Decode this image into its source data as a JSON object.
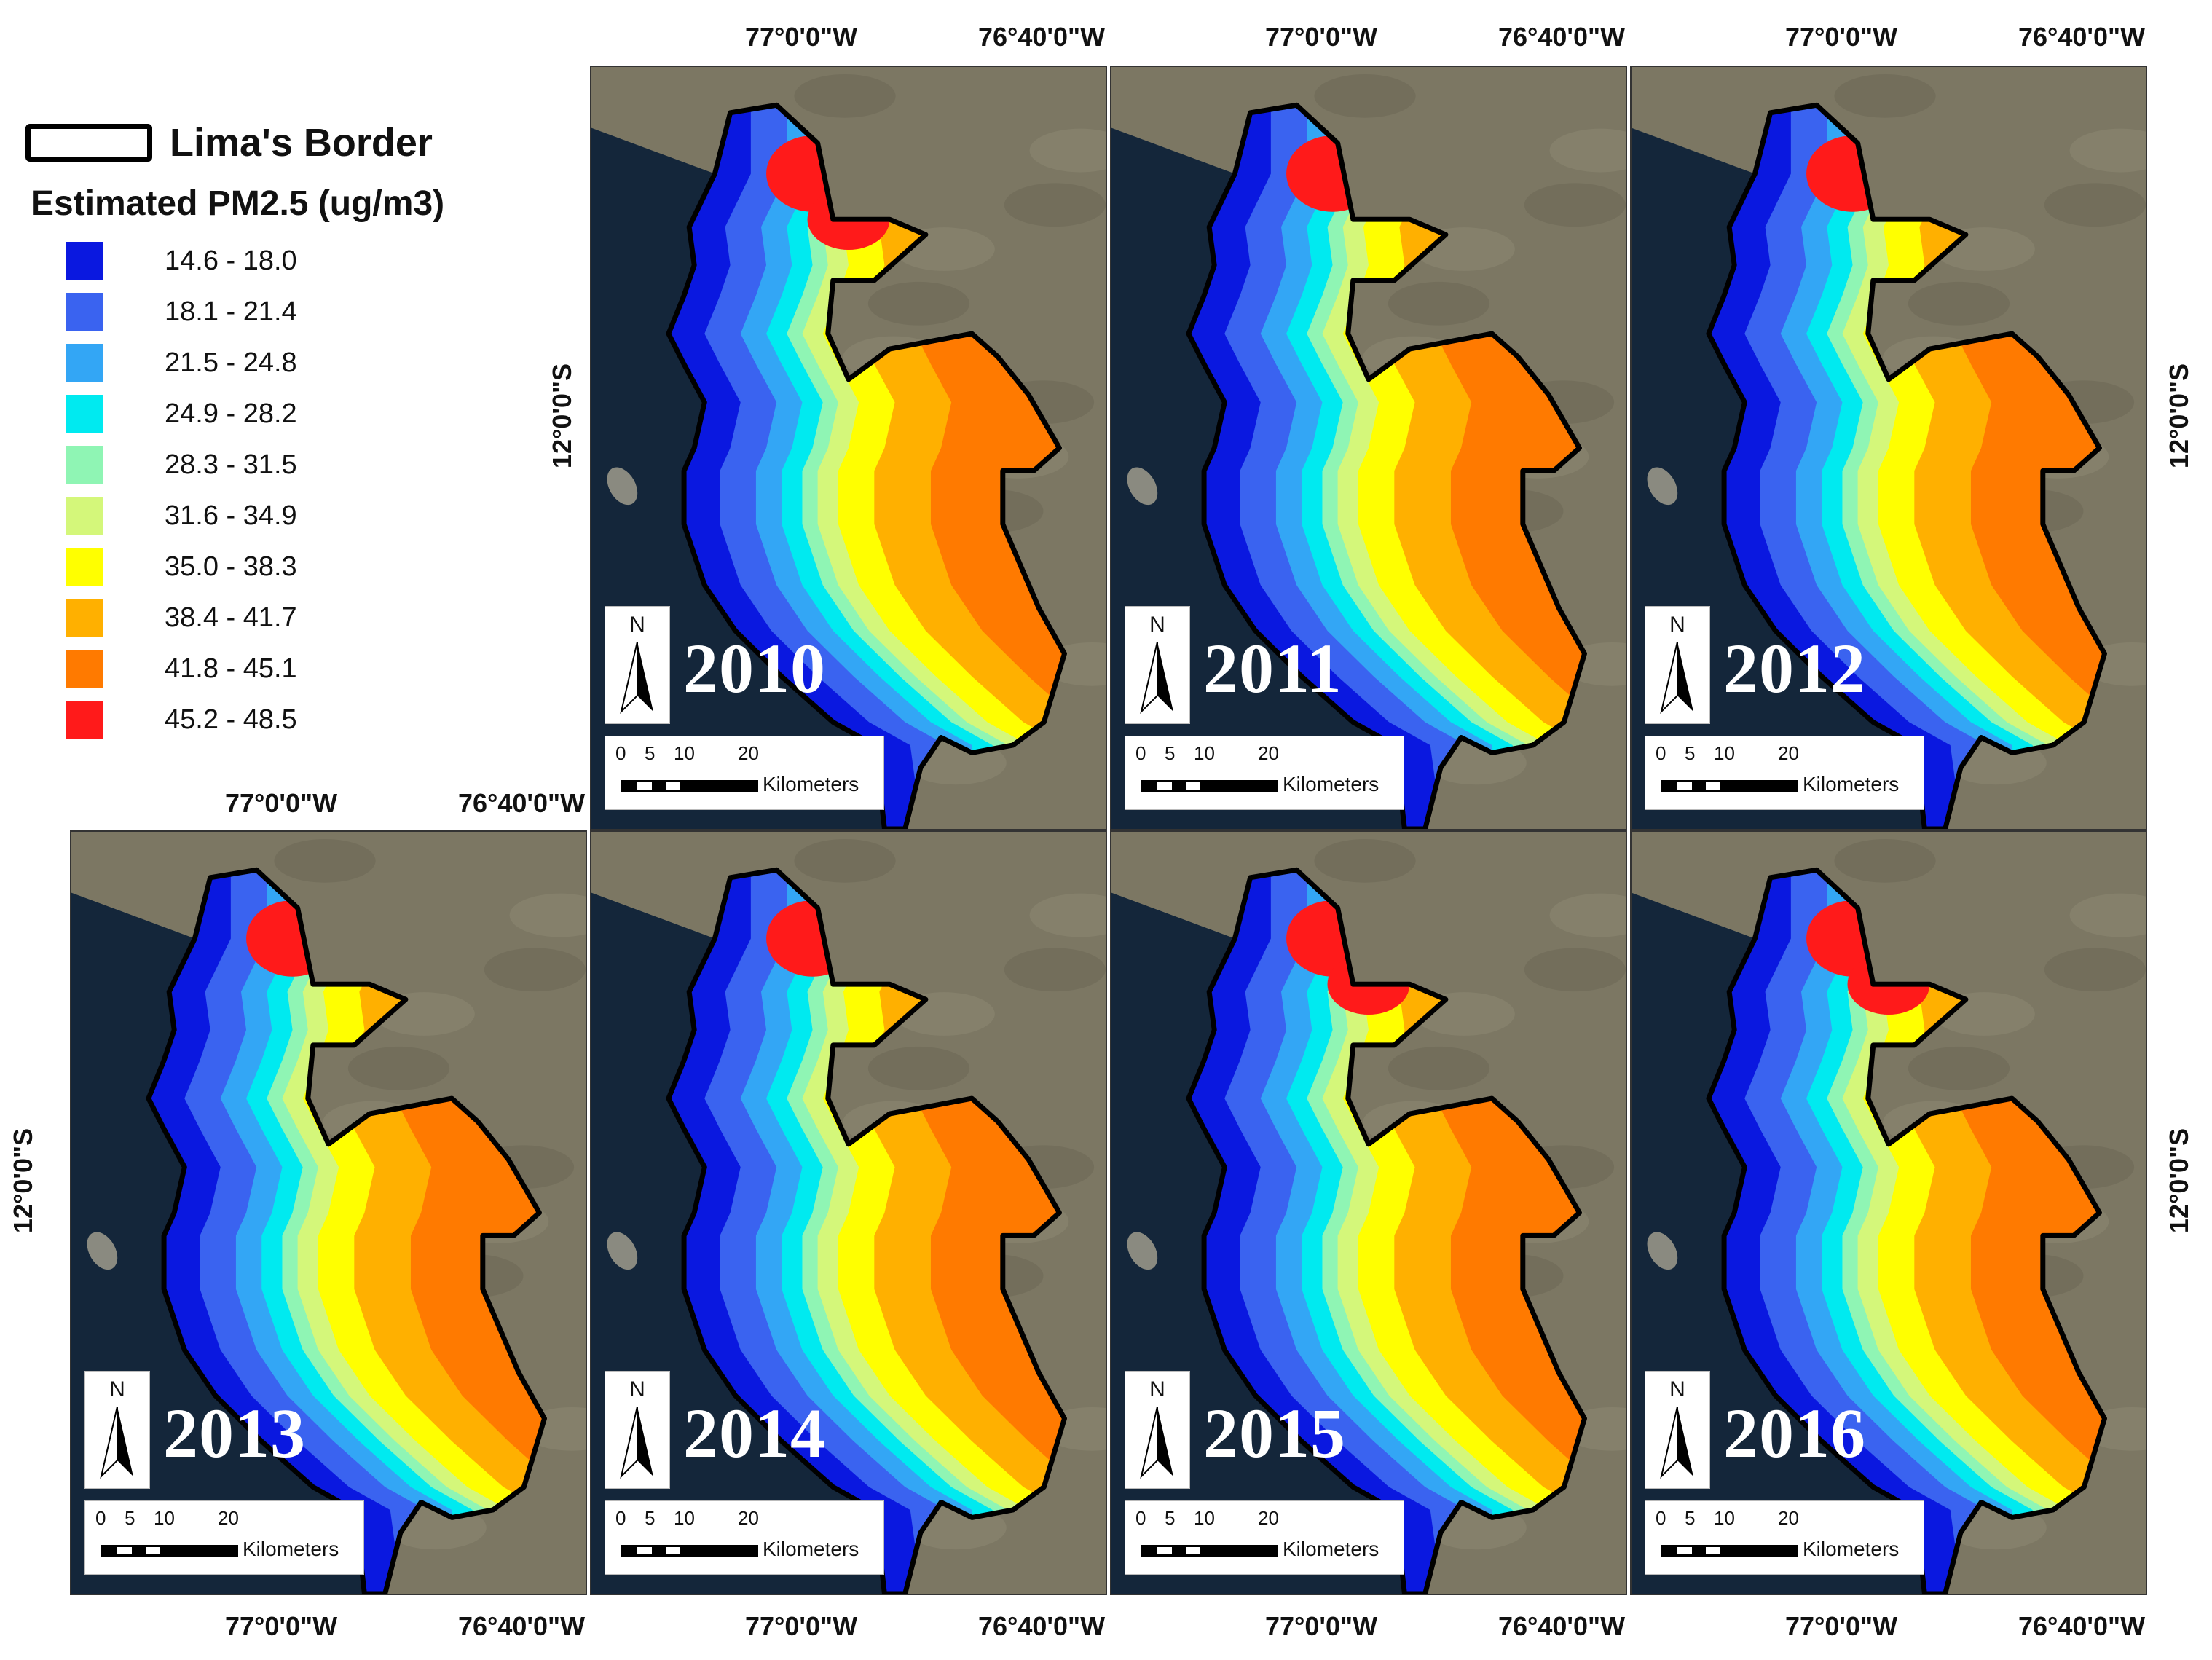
{
  "legend": {
    "border_label": "Lima's Border",
    "title": "Estimated PM2.5 (ug/m3)",
    "classes": [
      {
        "label": "14.6 - 18.0",
        "color": "#0a18e0"
      },
      {
        "label": "18.1 - 21.4",
        "color": "#3a63f0"
      },
      {
        "label": "21.5 - 24.8",
        "color": "#33a6f5"
      },
      {
        "label": "24.9 - 28.2",
        "color": "#00eaf0"
      },
      {
        "label": "28.3 - 31.5",
        "color": "#8ff5b4"
      },
      {
        "label": "31.6 - 34.9",
        "color": "#d4f77a"
      },
      {
        "label": "35.0 - 38.3",
        "color": "#ffff00"
      },
      {
        "label": "38.4 - 41.7",
        "color": "#ffb000"
      },
      {
        "label": "41.8 - 45.1",
        "color": "#ff7a00"
      },
      {
        "label": "45.2 - 48.5",
        "color": "#ff1a1a"
      }
    ]
  },
  "colors": {
    "ocean": "#14263a",
    "land": "#7c7763",
    "border": "#000000"
  },
  "panels": [
    {
      "year": "2010",
      "hotspot_classes": 2
    },
    {
      "year": "2011",
      "hotspot_classes": 1
    },
    {
      "year": "2012",
      "hotspot_classes": 1
    },
    {
      "year": "2013",
      "hotspot_classes": 1
    },
    {
      "year": "2014",
      "hotspot_classes": 1
    },
    {
      "year": "2015",
      "hotspot_classes": 2
    },
    {
      "year": "2016",
      "hotspot_classes": 3
    }
  ],
  "scale_bar": {
    "ticks": [
      "0",
      "5",
      "10",
      "20"
    ],
    "unit": "Kilometers"
  },
  "north_label": "N",
  "graticule": {
    "lon_west": "77°0'0\"W",
    "lon_east": "76°40'0\"W",
    "lat": "12°0'0\"S"
  }
}
